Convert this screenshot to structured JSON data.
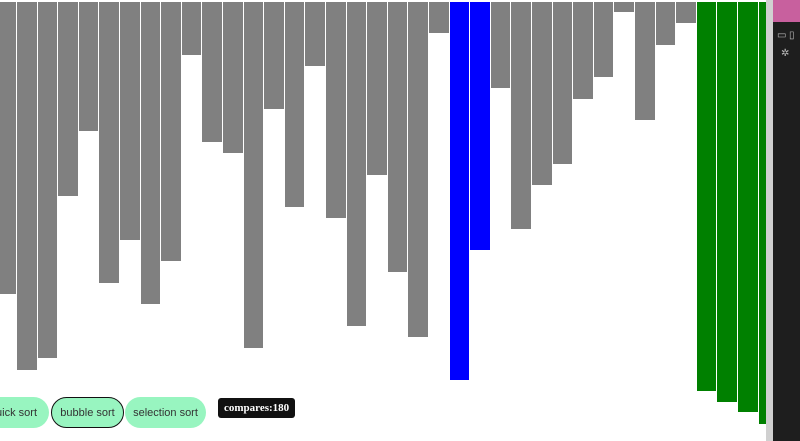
{
  "chart_data": {
    "type": "bar",
    "values": [
      292,
      368,
      356,
      194,
      129,
      281,
      238,
      302,
      259,
      53,
      140,
      151,
      346,
      107,
      205,
      64,
      216,
      324,
      173,
      270,
      335,
      31,
      378,
      248,
      86,
      227,
      183,
      162,
      97,
      75,
      10,
      118,
      43,
      21,
      389,
      400,
      410,
      422
    ],
    "highlight": {
      "compared": [
        22,
        23
      ],
      "sorted": [
        34,
        35,
        36,
        37
      ]
    },
    "colors": {
      "default": "#808080",
      "compared": "#0000ff",
      "sorted": "#008000"
    }
  },
  "controls": {
    "buttons": [
      {
        "label": "quick sort",
        "active": false
      },
      {
        "label": "bubble sort",
        "active": true
      },
      {
        "label": "selection sort",
        "active": false
      }
    ],
    "compares": "compares:180"
  },
  "side_panel": {
    "icons": [
      "device-toggle-icon",
      "panel-icon",
      "settings-gear-icon"
    ]
  }
}
